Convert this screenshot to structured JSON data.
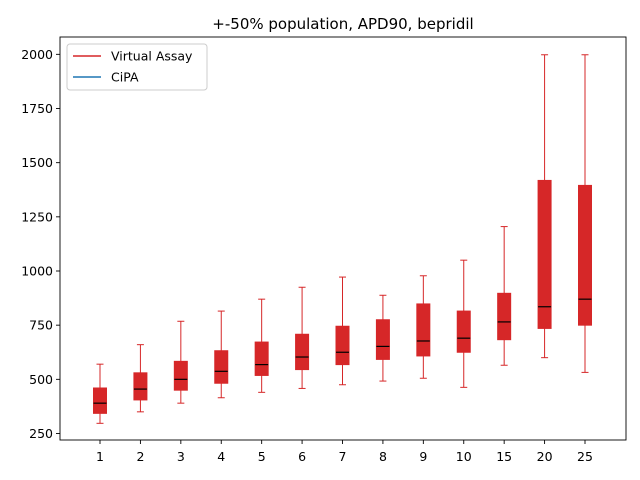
{
  "chart_data": {
    "type": "box",
    "title": "+-50% population, APD90, bepridil",
    "xlabel": "",
    "ylabel": "",
    "categories": [
      "1",
      "2",
      "3",
      "4",
      "5",
      "6",
      "7",
      "8",
      "9",
      "10",
      "15",
      "20",
      "25"
    ],
    "ylim": [
      220,
      2080
    ],
    "yticks": [
      250,
      500,
      750,
      1000,
      1250,
      1500,
      1750,
      2000
    ],
    "grid": false,
    "legend_position": "top-left",
    "series": [
      {
        "name": "Virtual Assay",
        "color": "#d62728",
        "boxes": [
          {
            "min": 297,
            "q1": 343,
            "median": 390,
            "q3": 460,
            "max": 570
          },
          {
            "min": 350,
            "q1": 405,
            "median": 455,
            "q3": 530,
            "max": 660
          },
          {
            "min": 390,
            "q1": 450,
            "median": 500,
            "q3": 583,
            "max": 768
          },
          {
            "min": 415,
            "q1": 482,
            "median": 537,
            "q3": 632,
            "max": 815
          },
          {
            "min": 440,
            "q1": 518,
            "median": 568,
            "q3": 672,
            "max": 870
          },
          {
            "min": 458,
            "q1": 545,
            "median": 603,
            "q3": 708,
            "max": 925
          },
          {
            "min": 475,
            "q1": 568,
            "median": 625,
            "q3": 745,
            "max": 972
          },
          {
            "min": 492,
            "q1": 592,
            "median": 652,
            "q3": 775,
            "max": 888
          },
          {
            "min": 505,
            "q1": 608,
            "median": 677,
            "q3": 848,
            "max": 978
          },
          {
            "min": 463,
            "q1": 625,
            "median": 690,
            "q3": 815,
            "max": 1050
          },
          {
            "min": 565,
            "q1": 683,
            "median": 765,
            "q3": 897,
            "max": 1205
          },
          {
            "min": 600,
            "q1": 735,
            "median": 835,
            "q3": 1418,
            "max": 1998
          },
          {
            "min": 532,
            "q1": 750,
            "median": 870,
            "q3": 1395,
            "max": 1998
          }
        ]
      },
      {
        "name": "CiPA",
        "color": "#1f77b4",
        "boxes": []
      }
    ]
  }
}
